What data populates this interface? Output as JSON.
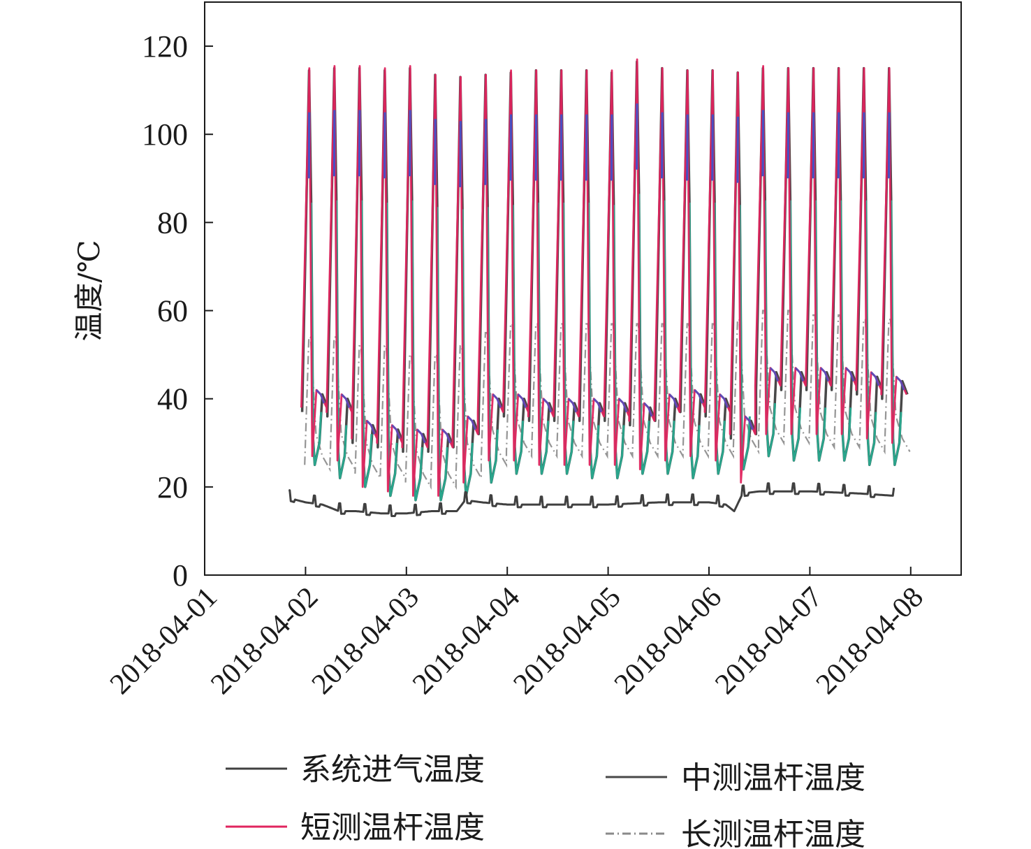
{
  "chart_data": {
    "type": "line",
    "title": "",
    "xlabel": "",
    "ylabel": "温度/℃",
    "ylim": [
      0,
      130
    ],
    "yticks": [
      0,
      20,
      40,
      60,
      80,
      100,
      120
    ],
    "ytick_labels": [
      "0",
      "20",
      "40",
      "60",
      "80",
      "100",
      "120"
    ],
    "xlim": [
      "2018-04-01",
      "2018-04-08T12:00"
    ],
    "xticks": [
      "2018-04-01",
      "2018-04-02",
      "2018-04-03",
      "2018-04-04",
      "2018-04-05",
      "2018-04-06",
      "2018-04-07",
      "2018-04-08"
    ],
    "xtick_labels": [
      "2018-04-01",
      "2018-04-02",
      "2018-04-03",
      "2018-04-04",
      "2018-04-05",
      "2018-04-06",
      "2018-04-07",
      "2018-04-08"
    ],
    "grid": false,
    "legend_position": "bottom",
    "series": [
      {
        "name": "系统进气温度",
        "color": "#404040",
        "style": "solid",
        "x": [
          "2018-04-01T20:00",
          "2018-04-02T00:00",
          "2018-04-02T04:00",
          "2018-04-02T08:00",
          "2018-04-02T12:00",
          "2018-04-02T18:00",
          "2018-04-03T00:00",
          "2018-04-03T06:00",
          "2018-04-03T12:00",
          "2018-04-03T14:00",
          "2018-04-03T18:00",
          "2018-04-04T00:00",
          "2018-04-04T12:00",
          "2018-04-05T00:00",
          "2018-04-05T12:00",
          "2018-04-06T00:00",
          "2018-04-06T04:00",
          "2018-04-06T06:00",
          "2018-04-06T08:00",
          "2018-04-06T12:00",
          "2018-04-07T00:00",
          "2018-04-07T12:00",
          "2018-04-07T20:00"
        ],
        "y": [
          17.5,
          16.5,
          16,
          14.5,
          14.5,
          14,
          14,
          14.5,
          14.5,
          17,
          16.5,
          16,
          16,
          16,
          16.5,
          16.5,
          16,
          14.5,
          18.5,
          19,
          19,
          18.5,
          18
        ]
      },
      {
        "name": "中测温杆温度",
        "color": "#484848",
        "style": "solid",
        "peak_times": [
          "2018-04-02T01:00",
          "2018-04-02T07:00",
          "2018-04-02T13:00",
          "2018-04-02T19:00",
          "2018-04-03T01:00",
          "2018-04-03T07:00",
          "2018-04-03T13:00",
          "2018-04-03T19:00",
          "2018-04-04T01:00",
          "2018-04-04T07:00",
          "2018-04-04T13:00",
          "2018-04-04T19:00",
          "2018-04-05T01:00",
          "2018-04-05T07:00",
          "2018-04-05T13:00",
          "2018-04-05T19:00",
          "2018-04-06T01:00",
          "2018-04-06T07:00",
          "2018-04-06T13:00",
          "2018-04-06T19:00",
          "2018-04-07T01:00",
          "2018-04-07T07:00",
          "2018-04-07T13:00",
          "2018-04-07T19:00"
        ],
        "peaks": [
          114.5,
          115,
          115,
          114.5,
          115,
          113.5,
          113,
          113.5,
          114,
          114.5,
          114.5,
          114.5,
          114,
          116.5,
          115,
          114.5,
          114.5,
          114,
          115,
          115,
          115,
          115,
          115,
          115
        ],
        "troughs": [
          25,
          22,
          20,
          18,
          17,
          17,
          18,
          21,
          23,
          23,
          23,
          22,
          22,
          23,
          23,
          22,
          23,
          24,
          27,
          26,
          26,
          26,
          25,
          25
        ]
      },
      {
        "name": "短测温杆温度",
        "color": "#e0245e",
        "style": "solid",
        "peak_times": [
          "2018-04-02T01:00",
          "2018-04-02T07:00",
          "2018-04-02T13:00",
          "2018-04-02T19:00",
          "2018-04-03T01:00",
          "2018-04-03T07:00",
          "2018-04-03T13:00",
          "2018-04-03T19:00",
          "2018-04-04T01:00",
          "2018-04-04T07:00",
          "2018-04-04T13:00",
          "2018-04-04T19:00",
          "2018-04-05T01:00",
          "2018-04-05T07:00",
          "2018-04-05T13:00",
          "2018-04-05T19:00",
          "2018-04-06T01:00",
          "2018-04-06T07:00",
          "2018-04-06T13:00",
          "2018-04-06T19:00",
          "2018-04-07T01:00",
          "2018-04-07T07:00",
          "2018-04-07T13:00",
          "2018-04-07T19:00"
        ],
        "peaks": [
          115,
          115.5,
          115.5,
          115,
          115.5,
          113.5,
          113,
          113.5,
          114.5,
          114.5,
          114.5,
          114.5,
          114.5,
          117,
          115,
          114.5,
          114.5,
          114,
          115.5,
          115,
          115,
          115,
          115,
          115
        ],
        "plateaus": [
          41,
          40,
          34,
          33,
          32,
          32,
          35,
          40,
          40,
          39,
          39,
          39,
          39,
          38,
          40,
          41,
          40,
          35,
          46,
          46,
          46,
          46,
          45,
          44
        ]
      },
      {
        "name": "长测温杆温度",
        "color": "#8a8a8a",
        "style": "dashdot",
        "troughs": [
          24,
          24,
          22,
          22,
          20,
          20,
          22,
          25,
          27,
          27,
          27,
          27,
          27,
          27,
          27,
          27,
          27,
          28,
          30,
          30,
          29,
          29,
          28,
          28
        ]
      }
    ]
  }
}
